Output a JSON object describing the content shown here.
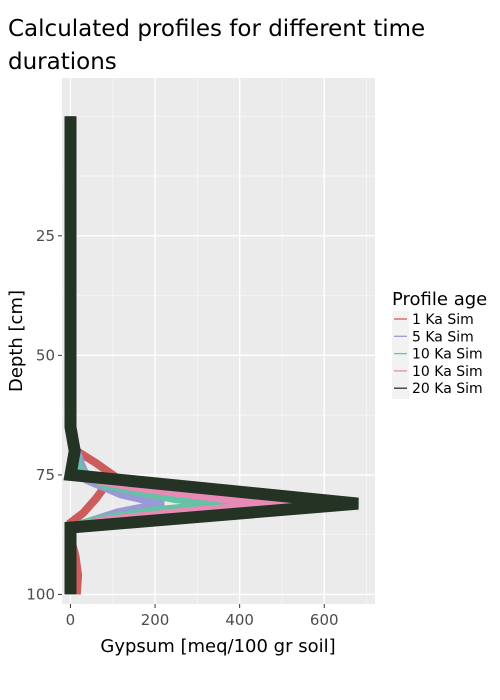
{
  "chart_data": {
    "type": "line",
    "title": [
      "Calculated profiles for different time",
      "durations"
    ],
    "xlabel": "Gypsum [meq/100 gr soil]",
    "ylabel": "Depth [cm]",
    "xlim": [
      -20,
      720
    ],
    "ylim": [
      102,
      -8
    ],
    "y_reversed": true,
    "x_ticks": [
      0,
      200,
      400,
      600
    ],
    "y_ticks": [
      25,
      50,
      75,
      100
    ],
    "grid": true,
    "legend_title": "Profile age",
    "legend_position": "right",
    "series": [
      {
        "name": "1 Ka Sim",
        "color": "#cd5c5c",
        "points": [
          [
            0,
            0
          ],
          [
            0,
            65
          ],
          [
            15,
            70
          ],
          [
            60,
            72.5
          ],
          [
            100,
            75
          ],
          [
            85,
            77
          ],
          [
            60,
            80
          ],
          [
            30,
            83
          ],
          [
            0,
            85
          ],
          [
            0,
            88
          ],
          [
            12,
            92
          ],
          [
            18,
            96
          ],
          [
            15,
            100
          ]
        ]
      },
      {
        "name": "5 Ka Sim",
        "color": "#9999d6",
        "points": [
          [
            0,
            0
          ],
          [
            0,
            65
          ],
          [
            10,
            69
          ],
          [
            25,
            73
          ],
          [
            40,
            76
          ],
          [
            120,
            79
          ],
          [
            220,
            81
          ],
          [
            110,
            83
          ],
          [
            40,
            85
          ],
          [
            0,
            86
          ],
          [
            0,
            100
          ]
        ]
      },
      {
        "name": "10 Ka Sim",
        "color": "#66c2a5",
        "points": [
          [
            0,
            0
          ],
          [
            0,
            65
          ],
          [
            10,
            70
          ],
          [
            20,
            74
          ],
          [
            80,
            77
          ],
          [
            250,
            80
          ],
          [
            380,
            81
          ],
          [
            200,
            82.5
          ],
          [
            60,
            84.5
          ],
          [
            0,
            86
          ],
          [
            0,
            100
          ]
        ]
      },
      {
        "name": "10 Ka Sim",
        "color": "#e78ab6",
        "points": [
          [
            0,
            0
          ],
          [
            0,
            65
          ],
          [
            10,
            70
          ],
          [
            0,
            75
          ],
          [
            150,
            77.5
          ],
          [
            370,
            80
          ],
          [
            520,
            81
          ],
          [
            300,
            82.5
          ],
          [
            90,
            84.5
          ],
          [
            0,
            86
          ],
          [
            0,
            100
          ]
        ]
      },
      {
        "name": "20 Ka Sim",
        "color": "#253325",
        "points": [
          [
            0,
            0
          ],
          [
            0,
            65
          ],
          [
            10,
            70
          ],
          [
            0,
            75
          ],
          [
            680,
            81
          ],
          [
            0,
            86
          ],
          [
            0,
            100
          ]
        ]
      }
    ]
  }
}
